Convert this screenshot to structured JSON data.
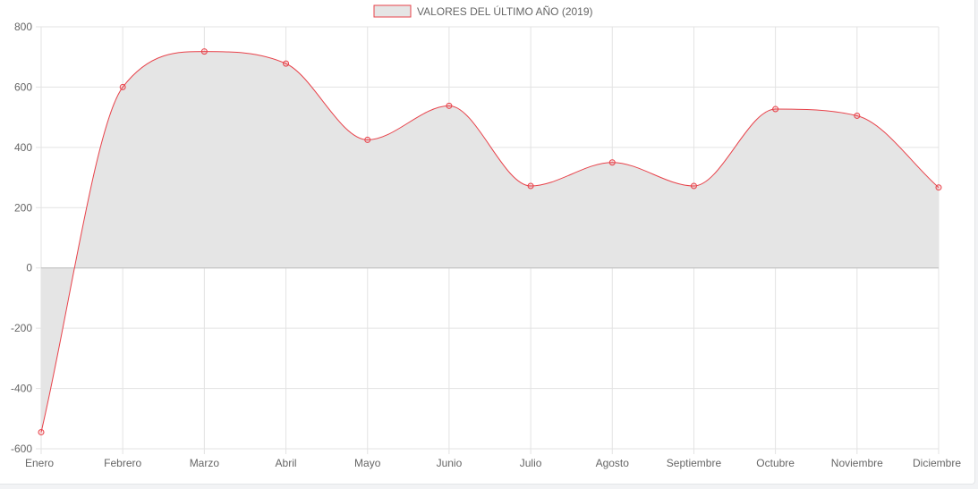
{
  "chart_data": {
    "type": "line",
    "title": "",
    "xlabel": "",
    "ylabel": "",
    "categories": [
      "Enero",
      "Febrero",
      "Marzo",
      "Abril",
      "Mayo",
      "Junio",
      "Julio",
      "Agosto",
      "Septiembre",
      "Octubre",
      "Noviembre",
      "Diciembre"
    ],
    "series": [
      {
        "name": "VALORES DEL ÚLTIMO AÑO (2019)",
        "values": [
          -545,
          600,
          718,
          678,
          425,
          538,
          272,
          350,
          272,
          527,
          505,
          267
        ],
        "line_color": "#e8424a",
        "fill_color": "#e5e5e5"
      }
    ],
    "ylim": [
      -600,
      800
    ],
    "yticks": [
      -600,
      -400,
      -200,
      0,
      200,
      400,
      600,
      800
    ],
    "grid": true,
    "fill": "origin",
    "smooth": true,
    "legend_position": "top"
  }
}
